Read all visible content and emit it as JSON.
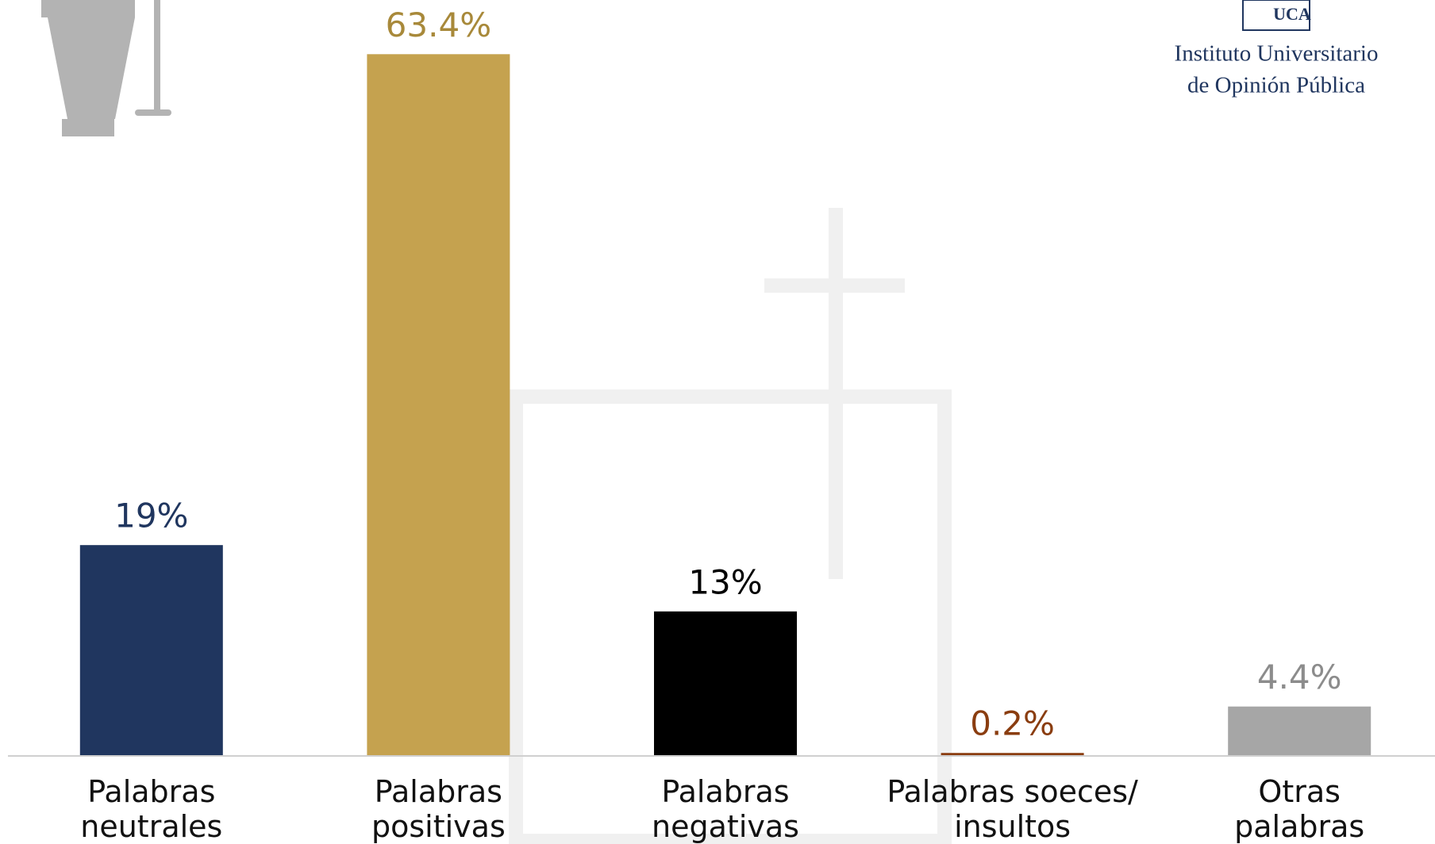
{
  "chart_data": {
    "type": "bar",
    "categories": [
      "Palabras neutrales",
      "Palabras positivas",
      "Palabras negativas",
      "Palabras soeces/ insultos",
      "Otras palabras"
    ],
    "values": [
      19,
      63.4,
      13,
      0.2,
      4.4
    ],
    "value_labels": [
      "19%",
      "63.4%",
      "13%",
      "0.2%",
      "4.4%"
    ],
    "colors": [
      "#20365f",
      "#c5a24f",
      "#000000",
      "#8a3d10",
      "#a6a6a6"
    ],
    "label_colors": [
      "#20365f",
      "#a8893a",
      "#000000",
      "#8a3d10",
      "#8c8c8c"
    ],
    "ylim": [
      0,
      65
    ]
  },
  "logo": {
    "lines": [
      "Instituto Universitario",
      "de Opinión Pública"
    ],
    "badge": "UCA"
  }
}
